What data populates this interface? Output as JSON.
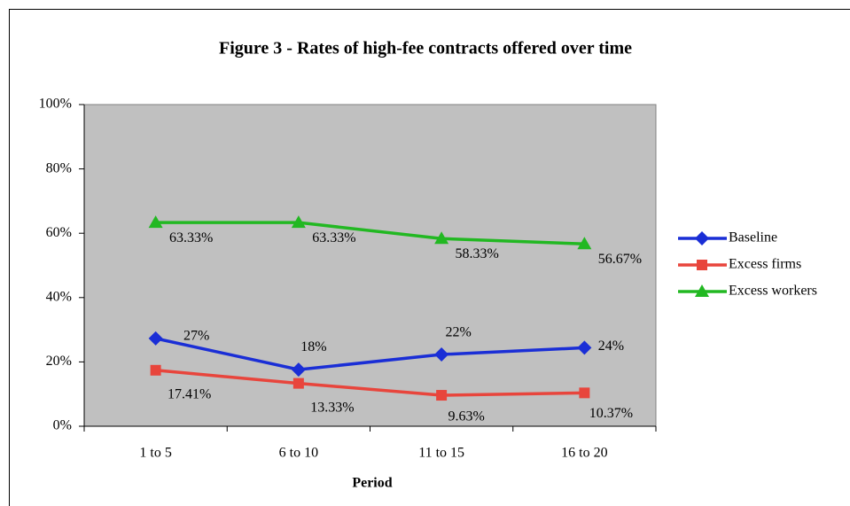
{
  "chart_data": {
    "type": "line",
    "title": "Figure 3 - Rates of high-fee contracts offered over time",
    "x_label": "Period",
    "categories": [
      "1 to 5",
      "6 to 10",
      "11 to 15",
      "16 to 20"
    ],
    "series": [
      {
        "name": "Baseline",
        "color": "#1a2ed6",
        "marker": "diamond",
        "values": [
          27.3,
          17.6,
          22.3,
          24.4
        ],
        "value_labels": [
          "27%",
          "18%",
          "22%",
          "24%"
        ]
      },
      {
        "name": "Excess firms",
        "color": "#e8453c",
        "marker": "square",
        "values": [
          17.41,
          13.33,
          9.63,
          10.37
        ],
        "value_labels": [
          "17.41%",
          "13.33%",
          "9.63%",
          "10.37%"
        ]
      },
      {
        "name": "Excess workers",
        "color": "#22b822",
        "marker": "triangle",
        "values": [
          63.33,
          63.33,
          58.33,
          56.67
        ],
        "value_labels": [
          "63.33%",
          "63.33%",
          "58.33%",
          "56.67%"
        ]
      }
    ],
    "ylim": [
      0,
      100
    ],
    "yticks": [
      {
        "value": 0,
        "label": "0%"
      },
      {
        "value": 20,
        "label": "20%"
      },
      {
        "value": 40,
        "label": "40%"
      },
      {
        "value": 60,
        "label": "60%"
      },
      {
        "value": 80,
        "label": "80%"
      },
      {
        "value": 100,
        "label": "100%"
      }
    ],
    "legend": "right",
    "plot_background": "#c0c0c0"
  }
}
